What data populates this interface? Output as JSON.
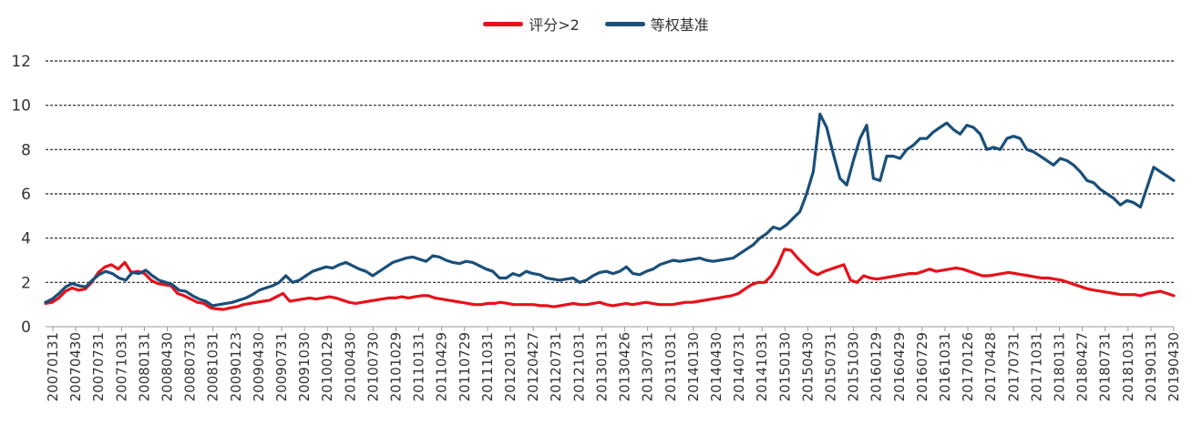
{
  "chart_data": {
    "type": "line",
    "title": "",
    "xlabel": "",
    "ylabel": "",
    "ylim": [
      0,
      12
    ],
    "yticks": [
      "0",
      "2",
      "4",
      "6",
      "8",
      "10",
      "12"
    ],
    "grid": "horizontal-dashed",
    "legend_position": "top-center",
    "x_tick_labels": [
      "20070131",
      "20070430",
      "20070731",
      "20071031",
      "20080131",
      "20080430",
      "20080731",
      "20081031",
      "20090123",
      "20090430",
      "20090731",
      "20091030",
      "20100129",
      "20100430",
      "20100730",
      "20101029",
      "20110131",
      "20110429",
      "20110729",
      "20111031",
      "20120131",
      "20120427",
      "20120731",
      "20121031",
      "20130131",
      "20130426",
      "20130731",
      "20131031",
      "20140130",
      "20140430",
      "20140731",
      "20141031",
      "20150130",
      "20150430",
      "20150731",
      "20151030",
      "20160129",
      "20160429",
      "20160729",
      "20161031",
      "20170126",
      "20170428",
      "20170731",
      "20171031",
      "20180131",
      "20180427",
      "20180731",
      "20181031",
      "20190131",
      "20190430"
    ],
    "series": [
      {
        "name": "评分>2",
        "color": "#e8111b",
        "values": [
          1.05,
          1.1,
          1.3,
          1.6,
          1.75,
          1.65,
          1.7,
          2.0,
          2.45,
          2.7,
          2.8,
          2.6,
          2.9,
          2.45,
          2.5,
          2.4,
          2.1,
          1.95,
          1.9,
          1.85,
          1.5,
          1.4,
          1.25,
          1.1,
          1.05,
          0.85,
          0.8,
          0.78,
          0.85,
          0.9,
          1.0,
          1.05,
          1.1,
          1.15,
          1.2,
          1.35,
          1.5,
          1.15,
          1.2,
          1.25,
          1.3,
          1.25,
          1.3,
          1.35,
          1.3,
          1.2,
          1.1,
          1.05,
          1.1,
          1.15,
          1.2,
          1.25,
          1.3,
          1.3,
          1.35,
          1.3,
          1.35,
          1.4,
          1.4,
          1.3,
          1.25,
          1.2,
          1.15,
          1.1,
          1.05,
          1.0,
          1.0,
          1.05,
          1.05,
          1.1,
          1.05,
          1.0,
          1.0,
          1.0,
          1.0,
          0.95,
          0.95,
          0.9,
          0.95,
          1.0,
          1.05,
          1.0,
          1.0,
          1.05,
          1.1,
          1.0,
          0.95,
          1.0,
          1.05,
          1.0,
          1.05,
          1.1,
          1.05,
          1.0,
          1.0,
          1.0,
          1.05,
          1.1,
          1.1,
          1.15,
          1.2,
          1.25,
          1.3,
          1.35,
          1.4,
          1.5,
          1.7,
          1.9,
          2.0,
          2.0,
          2.3,
          2.8,
          3.5,
          3.45,
          3.1,
          2.8,
          2.5,
          2.35,
          2.5,
          2.6,
          2.7,
          2.8,
          2.1,
          2.0,
          2.3,
          2.2,
          2.15,
          2.2,
          2.25,
          2.3,
          2.35,
          2.4,
          2.4,
          2.5,
          2.6,
          2.5,
          2.55,
          2.6,
          2.65,
          2.6,
          2.5,
          2.4,
          2.3,
          2.3,
          2.35,
          2.4,
          2.45,
          2.4,
          2.35,
          2.3,
          2.25,
          2.2,
          2.2,
          2.15,
          2.1,
          2.0,
          1.9,
          1.8,
          1.7,
          1.65,
          1.6,
          1.55,
          1.5,
          1.45,
          1.45,
          1.45,
          1.4,
          1.5,
          1.55,
          1.6,
          1.5,
          1.4
        ]
      },
      {
        "name": "等权基准",
        "color": "#1a4f7a",
        "values": [
          1.1,
          1.25,
          1.5,
          1.8,
          1.95,
          1.85,
          1.8,
          2.1,
          2.35,
          2.5,
          2.4,
          2.2,
          2.1,
          2.45,
          2.4,
          2.55,
          2.3,
          2.1,
          2.0,
          1.9,
          1.65,
          1.6,
          1.4,
          1.25,
          1.15,
          0.95,
          1.0,
          1.05,
          1.1,
          1.2,
          1.3,
          1.45,
          1.65,
          1.75,
          1.85,
          2.0,
          2.3,
          2.0,
          2.1,
          2.3,
          2.5,
          2.6,
          2.7,
          2.65,
          2.8,
          2.9,
          2.75,
          2.6,
          2.5,
          2.3,
          2.5,
          2.7,
          2.9,
          3.0,
          3.1,
          3.15,
          3.05,
          2.95,
          3.2,
          3.15,
          3.0,
          2.9,
          2.85,
          2.95,
          2.9,
          2.75,
          2.6,
          2.5,
          2.2,
          2.2,
          2.4,
          2.3,
          2.5,
          2.4,
          2.35,
          2.2,
          2.15,
          2.1,
          2.15,
          2.2,
          2.0,
          2.1,
          2.3,
          2.45,
          2.5,
          2.4,
          2.5,
          2.7,
          2.4,
          2.35,
          2.5,
          2.6,
          2.8,
          2.9,
          3.0,
          2.95,
          3.0,
          3.05,
          3.1,
          3.0,
          2.95,
          3.0,
          3.05,
          3.1,
          3.3,
          3.5,
          3.7,
          4.0,
          4.2,
          4.5,
          4.4,
          4.6,
          4.9,
          5.2,
          6.0,
          7.0,
          9.6,
          9.0,
          7.8,
          6.7,
          6.4,
          7.5,
          8.5,
          9.1,
          6.7,
          6.6,
          7.7,
          7.7,
          7.6,
          8.0,
          8.2,
          8.5,
          8.5,
          8.8,
          9.0,
          9.2,
          8.9,
          8.7,
          9.1,
          9.0,
          8.7,
          8.0,
          8.1,
          8.0,
          8.5,
          8.6,
          8.5,
          8.0,
          7.9,
          7.7,
          7.5,
          7.3,
          7.6,
          7.5,
          7.3,
          7.0,
          6.6,
          6.5,
          6.2,
          6.0,
          5.8,
          5.5,
          5.7,
          5.6,
          5.4,
          6.3,
          7.2,
          7.0,
          6.8,
          6.6
        ]
      }
    ]
  }
}
